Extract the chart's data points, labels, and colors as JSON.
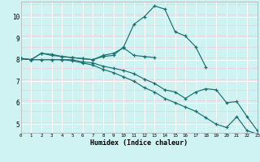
{
  "xlabel": "Humidex (Indice chaleur)",
  "bg_color": "#cff2f2",
  "line_color": "#1a7070",
  "grid_white_color": "#ffffff",
  "grid_pink_color": "#f0c8c8",
  "xlim": [
    0,
    23
  ],
  "ylim": [
    4.6,
    10.7
  ],
  "xticks": [
    0,
    1,
    2,
    3,
    4,
    5,
    6,
    7,
    8,
    9,
    10,
    11,
    12,
    13,
    14,
    15,
    16,
    17,
    18,
    19,
    20,
    21,
    22,
    23
  ],
  "yticks": [
    5,
    6,
    7,
    8,
    9,
    10
  ],
  "line1_x": [
    0,
    1,
    2,
    3,
    4,
    5,
    6,
    7,
    8,
    9,
    10,
    11,
    12,
    13,
    14,
    15,
    16,
    17,
    18
  ],
  "line1_y": [
    8.05,
    8.0,
    8.3,
    8.2,
    8.15,
    8.1,
    8.05,
    8.0,
    8.15,
    8.2,
    8.6,
    9.65,
    10.0,
    10.5,
    10.35,
    9.3,
    9.1,
    8.6,
    7.65
  ],
  "line2_x": [
    0,
    1,
    2,
    3,
    4,
    5,
    6,
    7,
    8,
    9,
    10,
    11,
    12,
    13
  ],
  "line2_y": [
    8.05,
    8.0,
    8.3,
    8.25,
    8.15,
    8.1,
    8.05,
    8.0,
    8.2,
    8.3,
    8.55,
    8.2,
    8.15,
    8.1
  ],
  "line3_x": [
    0,
    1,
    2,
    3,
    4,
    5,
    6,
    7,
    8,
    9,
    10,
    11,
    12,
    13,
    14,
    15,
    16,
    17,
    18,
    19,
    20,
    21,
    22,
    23
  ],
  "line3_y": [
    8.05,
    8.0,
    8.0,
    8.0,
    8.0,
    8.0,
    7.9,
    7.85,
    7.7,
    7.6,
    7.5,
    7.35,
    7.1,
    6.9,
    6.6,
    6.5,
    6.2,
    6.5,
    6.65,
    6.6,
    6.0,
    6.05,
    5.35,
    4.7
  ],
  "line4_x": [
    0,
    1,
    2,
    3,
    4,
    5,
    6,
    7,
    8,
    9,
    10,
    11,
    12,
    13,
    14,
    15,
    16,
    17,
    18,
    19,
    20,
    21,
    22,
    23
  ],
  "line4_y": [
    8.05,
    8.0,
    8.0,
    8.0,
    8.0,
    7.95,
    7.85,
    7.75,
    7.55,
    7.4,
    7.2,
    7.0,
    6.7,
    6.5,
    6.2,
    6.0,
    5.8,
    5.6,
    5.3,
    5.0,
    4.85,
    5.35,
    4.7,
    4.55
  ]
}
